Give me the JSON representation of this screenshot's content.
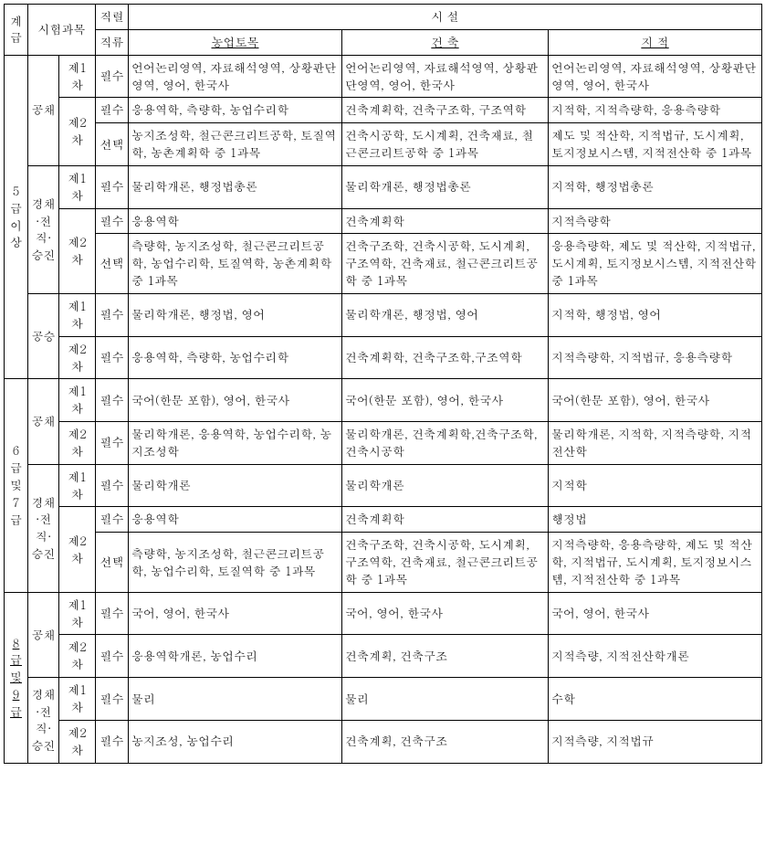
{
  "hdr": {
    "grade": "계급",
    "subject": "시험과목",
    "series": "직렬",
    "class": "직류",
    "facility": "시  설",
    "facA": "농업토목",
    "facB": "건  축",
    "facC": "지  적"
  },
  "grade5": {
    "label": "5 급 이 상"
  },
  "grade6": {
    "label": "6 급 및 7 급"
  },
  "grade8": {
    "label": "8 급 및 9 급"
  },
  "cat": {
    "gongchae": "공채",
    "gyeongchae": "경채·전직·승진",
    "gongseung": "공승"
  },
  "round1": "제1차",
  "round2": "제2차",
  "req": {
    "pilsu": "필수",
    "seontaek": "선택"
  },
  "g5": {
    "gc_r1_a": "언어논리영역, 자료해석영역, 상황판단영역, 영어, 한국사",
    "gc_r1_b": "언어논리영역, 자료해석영역, 상황판단영역, 영어, 한국사",
    "gc_r1_c": "언어논리영역, 자료해석영역, 상황판단영역, 영어, 한국사",
    "gc_r2p_a": "응용역학, 측량학, 농업수리학",
    "gc_r2p_b": "건축계획학, 건축구조학, 구조역학",
    "gc_r2p_c": "지적학, 지적측량학, 응용측량학",
    "gc_r2s_a": "농지조성학, 철근콘크리트공학, 토질역학, 농촌계획학 중 1과목",
    "gc_r2s_b": "건축시공학, 도시계획, 건축재료, 철근콘크리트공학 중 1과목",
    "gc_r2s_c": "제도 및 적산학, 지적법규, 도시계획, 토지정보시스템, 지적전산학 중 1과목",
    "kc_r1_a": "물리학개론, 행정법총론",
    "kc_r1_b": "물리학개론, 행정법총론",
    "kc_r1_c": "지적학, 행정법총론",
    "kc_r2p_a": "응용역학",
    "kc_r2p_b": "건축계획학",
    "kc_r2p_c": "지적측량학",
    "kc_r2s_a": "측량학, 농지조성학, 철근콘크리트공학, 농업수리학, 토질역학, 농촌계획학 중 1과목",
    "kc_r2s_b": "건축구조학, 건축시공학, 도시계획, 구조역학, 건축재료, 철근콘크리트공학 중 1과목",
    "kc_r2s_c": "응용측량학, 제도 및 적산학, 지적법규, 도시계획, 토지정보시스템, 지적전산학 중 1과목",
    "gs_r1_a": "물리학개론, 행정법, 영어",
    "gs_r1_b": "물리학개론, 행정법, 영어",
    "gs_r1_c": "지적학, 행정법, 영어",
    "gs_r2_a": "응용역학, 측량학, 농업수리학",
    "gs_r2_b": "건축계획학, 건축구조학,구조역학",
    "gs_r2_c": "지적측량학, 지적법규, 응용측량학"
  },
  "g6": {
    "gc_r1_a": "국어(한문 포함), 영어, 한국사",
    "gc_r1_b": "국어(한문 포함), 영어, 한국사",
    "gc_r1_c": "국어(한문 포함), 영어, 한국사",
    "gc_r2_a": "물리학개론, 응용역학, 농업수리학, 농지조성학",
    "gc_r2_b": "물리학개론, 건축계획학,건축구조학, 건축시공학",
    "gc_r2_c": "물리학개론, 지적학, 지적측량학, 지적전산학",
    "kc_r1_a": "물리학개론",
    "kc_r1_b": "물리학개론",
    "kc_r1_c": "지적학",
    "kc_r2p_a": "응용역학",
    "kc_r2p_b": "건축계획학",
    "kc_r2p_c": "행정법",
    "kc_r2s_a": "측량학, 농지조성학, 철근콘크리트공학, 농업수리학, 토질역학 중 1과목",
    "kc_r2s_b": "건축구조학, 건축시공학, 도시계획, 구조역학, 건축재료, 철근콘크리트공학 중 1과목",
    "kc_r2s_c": "지적측량학, 응용측량학, 제도 및 적산학, 지적법규, 도시계획, 토지정보시스템, 지적전산학  중 1과목"
  },
  "g8": {
    "gc_r1_a": "국어, 영어, 한국사",
    "gc_r1_b": "국어, 영어, 한국사",
    "gc_r1_c": "국어, 영어, 한국사",
    "gc_r2_a": "응용역학개론, 농업수리",
    "gc_r2_b": "건축계획, 건축구조",
    "gc_r2_c": "지적측량, 지적전산학개론",
    "kc_r1_a": "물리",
    "kc_r1_b": "물리",
    "kc_r1_c": "수학",
    "kc_r2_a": "농지조성, 농업수리",
    "kc_r2_b": "건축계획, 건축구조",
    "kc_r2_c": "지적측량, 지적법규"
  }
}
